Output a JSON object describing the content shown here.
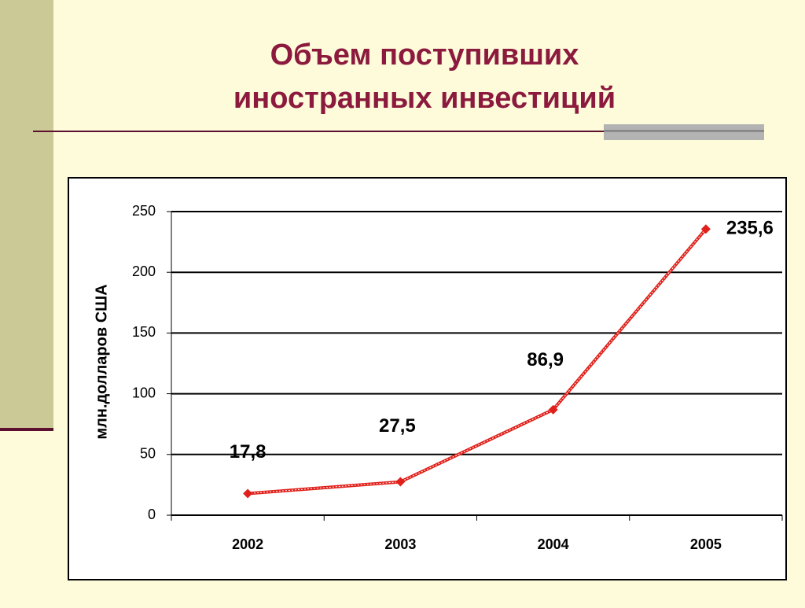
{
  "slide": {
    "title_lines": [
      "Объем поступивших",
      "иностранных инвестиций"
    ]
  },
  "chart_data": {
    "type": "line",
    "y_label": "млн.долларов США",
    "categories": [
      "2002",
      "2003",
      "2004",
      "2005"
    ],
    "series": [
      {
        "color": "#e0201a",
        "values": [
          17.8,
          27.5,
          86.9,
          235.6
        ],
        "value_labels": [
          "17,8",
          "27,5",
          "86,9",
          "235,6"
        ]
      }
    ],
    "ylim": [
      0,
      250
    ],
    "yticks": [
      0,
      50,
      100,
      150,
      200,
      250
    ],
    "grid": true
  }
}
